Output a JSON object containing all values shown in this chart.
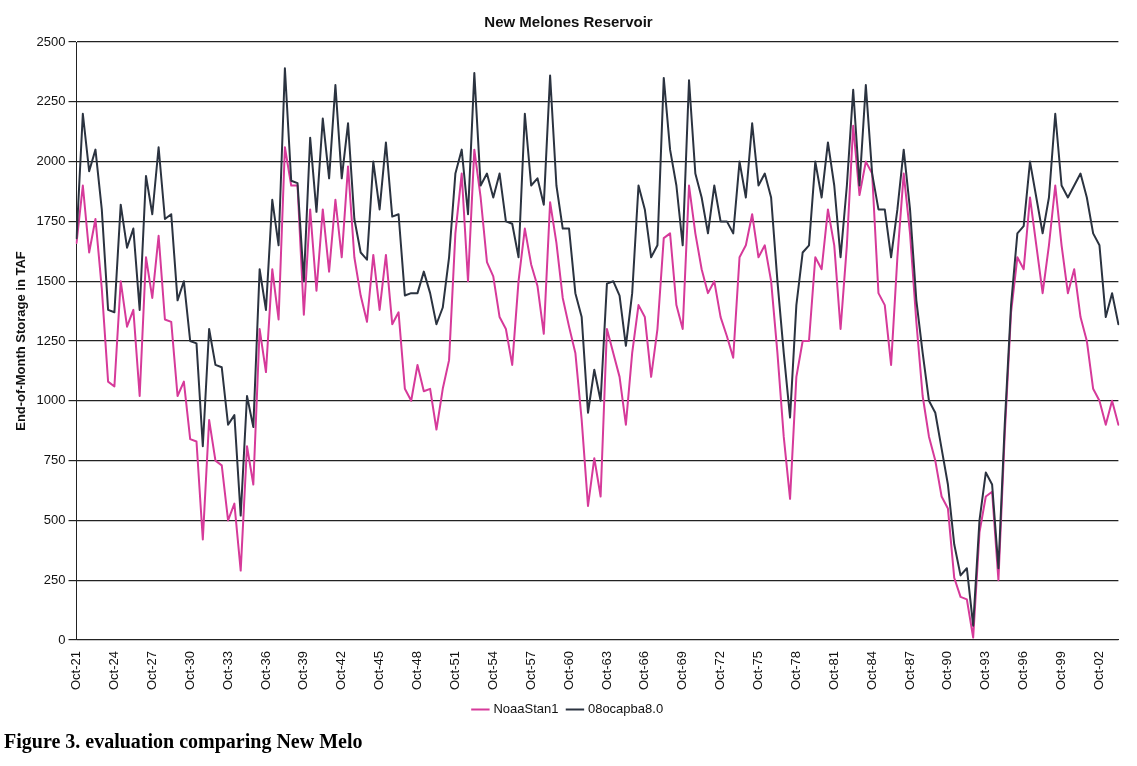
{
  "chart_data": {
    "type": "line",
    "title": "New Melones Reservoir",
    "ylabel": "End-of-Month Storage in TAF",
    "categories": [
      "Oct-21",
      null,
      null,
      null,
      null,
      null,
      "Oct-24",
      null,
      null,
      null,
      null,
      null,
      "Oct-27",
      null,
      null,
      null,
      null,
      null,
      "Oct-30",
      null,
      null,
      null,
      null,
      null,
      "Oct-33",
      null,
      null,
      null,
      null,
      null,
      "Oct-36",
      null,
      null,
      null,
      null,
      null,
      "Oct-39",
      null,
      null,
      null,
      null,
      null,
      "Oct-42",
      null,
      null,
      null,
      null,
      null,
      "Oct-45",
      null,
      null,
      null,
      null,
      null,
      "Oct-48",
      null,
      null,
      null,
      null,
      null,
      "Oct-51",
      null,
      null,
      null,
      null,
      null,
      "Oct-54",
      null,
      null,
      null,
      null,
      null,
      "Oct-57",
      null,
      null,
      null,
      null,
      null,
      "Oct-60",
      null,
      null,
      null,
      null,
      null,
      "Oct-63",
      null,
      null,
      null,
      null,
      null,
      "Oct-66",
      null,
      null,
      null,
      null,
      null,
      "Oct-69",
      null,
      null,
      null,
      null,
      null,
      "Oct-72",
      null,
      null,
      null,
      null,
      null,
      "Oct-75",
      null,
      null,
      null,
      null,
      null,
      "Oct-78",
      null,
      null,
      null,
      null,
      null,
      "Oct-81",
      null,
      null,
      null,
      null,
      null,
      "Oct-84",
      null,
      null,
      null,
      null,
      null,
      "Oct-87",
      null,
      null,
      null,
      null,
      null,
      "Oct-90",
      null,
      null,
      null,
      null,
      null,
      "Oct-93",
      null,
      null,
      null,
      null,
      null,
      "Oct-96",
      null,
      null,
      null,
      null,
      null,
      "Oct-99",
      null,
      null,
      null,
      null,
      null,
      "Oct-02",
      null,
      null,
      null
    ],
    "series": [
      {
        "name": "NoaaStan1",
        "color": "#d63a9a",
        "values": [
          1660,
          1900,
          1620,
          1760,
          1470,
          1080,
          1060,
          1500,
          1310,
          1380,
          1020,
          1600,
          1430,
          1690,
          1340,
          1330,
          1020,
          1080,
          840,
          830,
          420,
          920,
          750,
          730,
          500,
          570,
          290,
          810,
          650,
          1300,
          1120,
          1550,
          1340,
          2060,
          1900,
          1900,
          1360,
          1800,
          1460,
          1800,
          1540,
          1840,
          1600,
          1980,
          1600,
          1440,
          1330,
          1610,
          1380,
          1610,
          1320,
          1370,
          1050,
          1000,
          1150,
          1040,
          1050,
          880,
          1050,
          1170,
          1700,
          1950,
          1500,
          2050,
          1850,
          1580,
          1520,
          1350,
          1300,
          1150,
          1500,
          1720,
          1570,
          1480,
          1280,
          1830,
          1660,
          1430,
          1310,
          1200,
          920,
          560,
          760,
          600,
          1300,
          1200,
          1100,
          900,
          1200,
          1400,
          1350,
          1100,
          1300,
          1680,
          1700,
          1400,
          1300,
          1900,
          1700,
          1550,
          1450,
          1500,
          1350,
          1270,
          1180,
          1600,
          1650,
          1780,
          1600,
          1650,
          1500,
          1200,
          850,
          590,
          1100,
          1250,
          1250,
          1600,
          1550,
          1800,
          1650,
          1300,
          1650,
          2150,
          1860,
          2000,
          1950,
          1450,
          1400,
          1150,
          1600,
          1950,
          1700,
          1330,
          1020,
          850,
          750,
          600,
          550,
          260,
          180,
          170,
          10,
          450,
          600,
          620,
          250,
          860,
          1370,
          1600,
          1550,
          1850,
          1650,
          1450,
          1650,
          1900,
          1650,
          1450,
          1550,
          1350,
          1250,
          1050,
          1000,
          900,
          1000,
          900
        ]
      },
      {
        "name": "08ocapba8.0",
        "color": "#2b3340",
        "values": [
          1680,
          2200,
          1960,
          2050,
          1800,
          1380,
          1370,
          1820,
          1640,
          1720,
          1380,
          1940,
          1780,
          2060,
          1760,
          1780,
          1420,
          1500,
          1250,
          1240,
          810,
          1300,
          1150,
          1140,
          900,
          940,
          520,
          1020,
          890,
          1550,
          1380,
          1840,
          1650,
          2390,
          1920,
          1910,
          1500,
          2100,
          1790,
          2180,
          1930,
          2320,
          1930,
          2160,
          1760,
          1620,
          1590,
          2000,
          1800,
          2080,
          1770,
          1780,
          1440,
          1450,
          1450,
          1540,
          1450,
          1320,
          1390,
          1600,
          1950,
          2050,
          1780,
          2370,
          1900,
          1950,
          1850,
          1950,
          1750,
          1740,
          1600,
          2200,
          1900,
          1930,
          1820,
          2360,
          1900,
          1720,
          1720,
          1450,
          1350,
          950,
          1130,
          1000,
          1490,
          1500,
          1440,
          1230,
          1450,
          1900,
          1800,
          1600,
          1650,
          2350,
          2050,
          1900,
          1650,
          2340,
          1950,
          1850,
          1700,
          1900,
          1750,
          1750,
          1700,
          2000,
          1850,
          2160,
          1900,
          1950,
          1850,
          1500,
          1200,
          930,
          1400,
          1620,
          1650,
          2000,
          1850,
          2080,
          1900,
          1600,
          1900,
          2300,
          1900,
          2320,
          1950,
          1800,
          1800,
          1600,
          1800,
          2050,
          1800,
          1420,
          1200,
          1000,
          950,
          800,
          650,
          400,
          270,
          300,
          60,
          500,
          700,
          650,
          300,
          900,
          1400,
          1700,
          1730,
          2000,
          1850,
          1700,
          1850,
          2200,
          1900,
          1850,
          1900,
          1950,
          1850,
          1700,
          1650,
          1350,
          1450,
          1320
        ]
      }
    ],
    "ylim": [
      0,
      2500
    ],
    "yticks": [
      0,
      250,
      500,
      750,
      1000,
      1250,
      1500,
      1750,
      2000,
      2250,
      2500
    ],
    "grid": "y",
    "legend": "bottom",
    "marker": "none",
    "line_style": "solid",
    "annotations": [
      "Figure 3. evaluation comparing New Melo"
    ]
  }
}
